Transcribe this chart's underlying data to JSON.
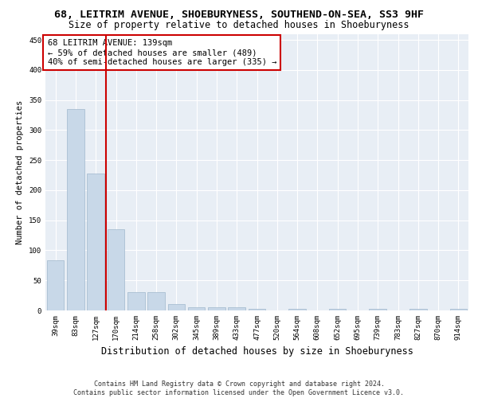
{
  "title": "68, LEITRIM AVENUE, SHOEBURYNESS, SOUTHEND-ON-SEA, SS3 9HF",
  "subtitle": "Size of property relative to detached houses in Shoeburyness",
  "xlabel": "Distribution of detached houses by size in Shoeburyness",
  "ylabel": "Number of detached properties",
  "bar_labels": [
    "39sqm",
    "83sqm",
    "127sqm",
    "170sqm",
    "214sqm",
    "258sqm",
    "302sqm",
    "345sqm",
    "389sqm",
    "433sqm",
    "477sqm",
    "520sqm",
    "564sqm",
    "608sqm",
    "652sqm",
    "695sqm",
    "739sqm",
    "783sqm",
    "827sqm",
    "870sqm",
    "914sqm"
  ],
  "bar_values": [
    83,
    335,
    228,
    135,
    30,
    30,
    10,
    5,
    5,
    5,
    3,
    0,
    3,
    0,
    3,
    0,
    3,
    0,
    3,
    0,
    3
  ],
  "bar_color": "#c8d8e8",
  "bar_edgecolor": "#a0b8cc",
  "background_color": "#e8eef5",
  "grid_color": "#ffffff",
  "annotation_line1": "68 LEITRIM AVENUE: 139sqm",
  "annotation_line2": "← 59% of detached houses are smaller (489)",
  "annotation_line3": "40% of semi-detached houses are larger (335) →",
  "annotation_box_edgecolor": "#cc0000",
  "vline_x": 2.5,
  "vline_color": "#cc0000",
  "ylim": [
    0,
    460
  ],
  "yticks": [
    0,
    50,
    100,
    150,
    200,
    250,
    300,
    350,
    400,
    450
  ],
  "footer_text": "Contains HM Land Registry data © Crown copyright and database right 2024.\nContains public sector information licensed under the Open Government Licence v3.0.",
  "title_fontsize": 9.5,
  "subtitle_fontsize": 8.5,
  "xlabel_fontsize": 8.5,
  "ylabel_fontsize": 7.5,
  "tick_fontsize": 6.5,
  "annotation_fontsize": 7.5,
  "footer_fontsize": 6.0
}
